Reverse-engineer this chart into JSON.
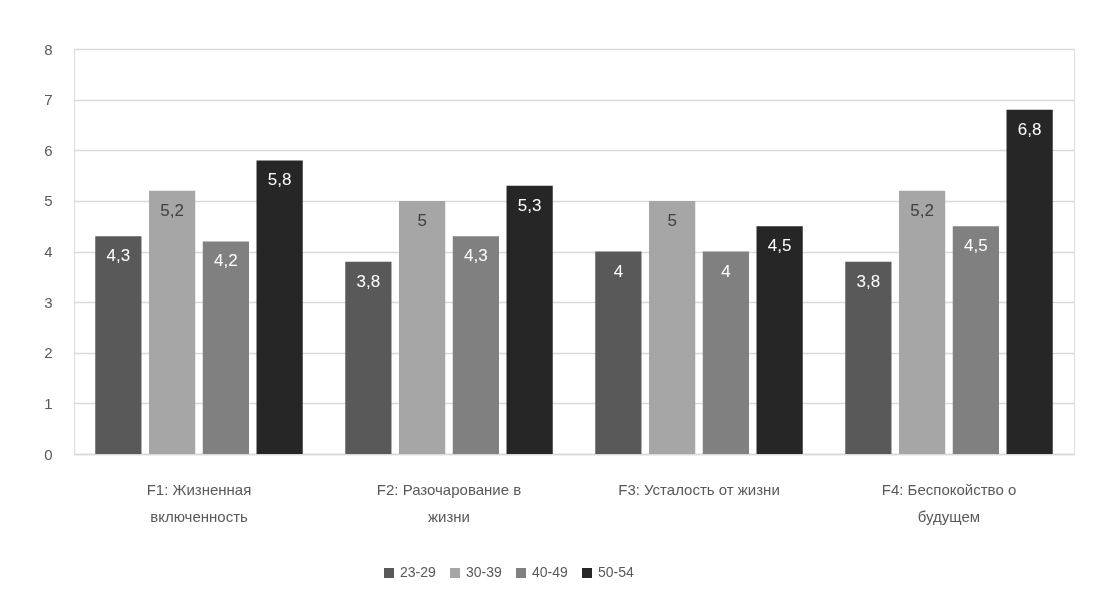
{
  "chart_data": {
    "type": "bar",
    "categories": [
      "F1: Жизненная включенность",
      "F2: Разочарование в жизни",
      "F3: Усталость от жизни",
      "F4: Беспокойство о будущем"
    ],
    "series": [
      {
        "name": "23-29",
        "color": "#595959",
        "values": [
          4.3,
          3.8,
          4,
          3.8
        ],
        "value_labels": [
          "4,3",
          "3,8",
          "4",
          "3,8"
        ]
      },
      {
        "name": "30-39",
        "color": "#a6a6a6",
        "values": [
          5.2,
          5,
          5,
          5.2
        ],
        "value_labels": [
          "5,2",
          "5",
          "5",
          "5,2"
        ]
      },
      {
        "name": "40-49",
        "color": "#808080",
        "values": [
          4.2,
          4.3,
          4,
          4.5
        ],
        "value_labels": [
          "4,2",
          "4,3",
          "4",
          "4,5"
        ]
      },
      {
        "name": "50-54",
        "color": "#262626",
        "values": [
          5.8,
          5.3,
          4.5,
          6.8
        ],
        "value_labels": [
          "5,8",
          "5,3",
          "4,5",
          "6,8"
        ]
      }
    ],
    "ylim": [
      0,
      8
    ],
    "yticks": [
      0,
      1,
      2,
      3,
      4,
      5,
      6,
      7,
      8
    ],
    "grid": "y",
    "legend": "bottom"
  }
}
